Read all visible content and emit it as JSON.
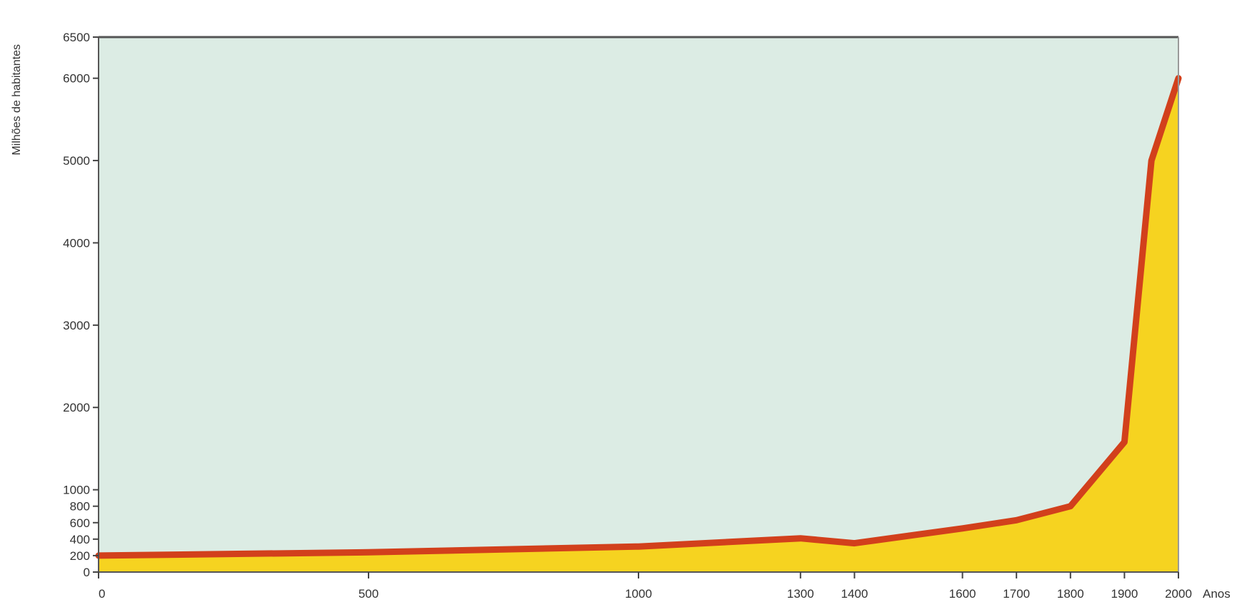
{
  "chart_data": {
    "type": "area",
    "ylabel": "Milhões de habitantes",
    "xunit": "Anos",
    "xlim": [
      0,
      2000
    ],
    "ylim": [
      0,
      6500
    ],
    "grid": false,
    "x_ticks": [
      0,
      500,
      1000,
      1300,
      1400,
      1600,
      1700,
      1800,
      1900,
      2000
    ],
    "y_ticks": [
      0,
      200,
      400,
      600,
      800,
      1000,
      2000,
      3000,
      4000,
      5000,
      6000,
      6500
    ],
    "series": [
      {
        "x": [
          0,
          500,
          1000,
          1300,
          1400,
          1600,
          1700,
          1800,
          1900,
          1950,
          2000
        ],
        "values": [
          200,
          240,
          310,
          410,
          350,
          530,
          630,
          800,
          1580,
          5000,
          6000
        ]
      }
    ],
    "colors": {
      "plot_background": "#dcece4",
      "line": "#d2401c",
      "fill": "#f6d320",
      "frame": "#555555"
    }
  }
}
